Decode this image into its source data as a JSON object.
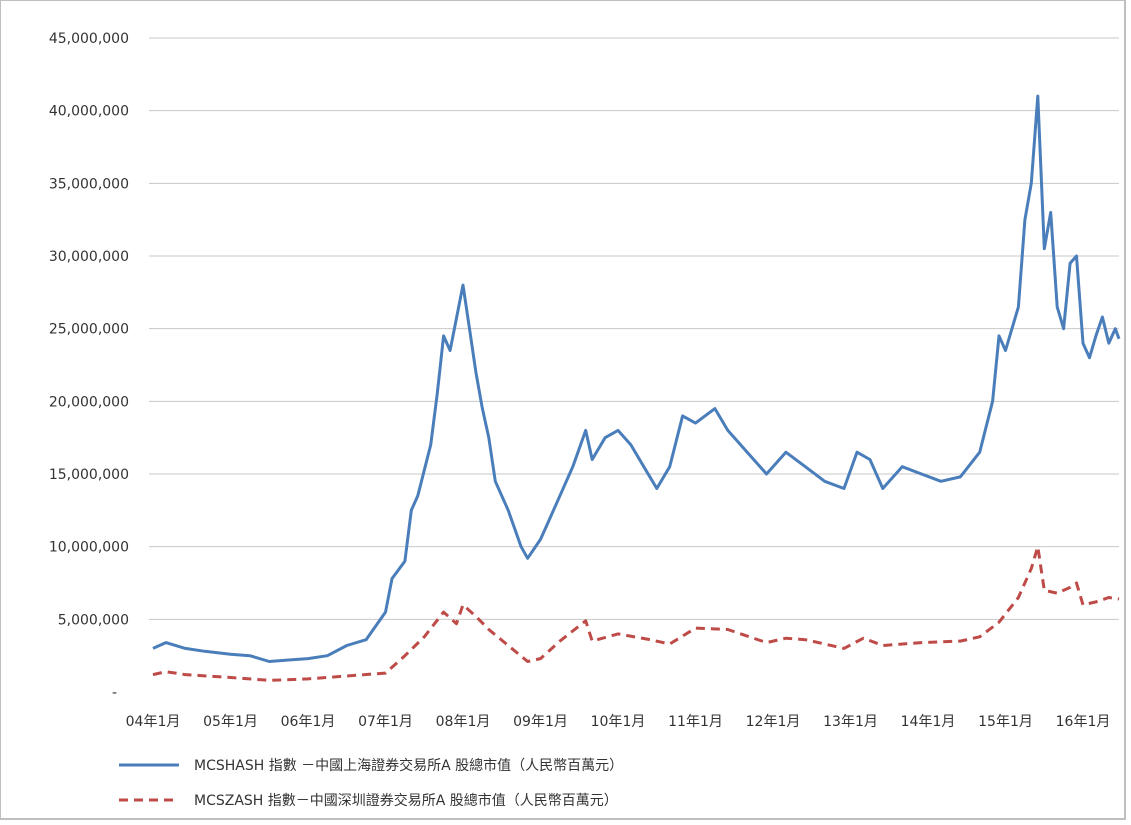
{
  "chart_data": {
    "type": "line",
    "ylim": [
      0,
      45000000
    ],
    "y_ticks": [
      "-",
      "5,000,000",
      "10,000,000",
      "15,000,000",
      "20,000,000",
      "25,000,000",
      "30,000,000",
      "35,000,000",
      "40,000,000",
      "45,000,000"
    ],
    "y_tick_values": [
      0,
      5000000,
      10000000,
      15000000,
      20000000,
      25000000,
      30000000,
      35000000,
      40000000,
      45000000
    ],
    "x_ticks": [
      "04年1月",
      "05年1月",
      "06年1月",
      "07年1月",
      "08年1月",
      "09年1月",
      "10年1月",
      "11年1月",
      "12年1月",
      "13年1月",
      "14年1月",
      "15年1月",
      "16年1月"
    ],
    "x_range": [
      "2004-01",
      "2016-07"
    ],
    "grid": "horizontal",
    "legend_position": "bottom",
    "series": [
      {
        "name": "MCSHASH 指數 －中國上海證券交易所A 股總市值（人民幣百萬元）",
        "style": "solid",
        "color": "#4a7ebb",
        "points": [
          [
            "2004-01",
            3000000
          ],
          [
            "2004-03",
            3400000
          ],
          [
            "2004-06",
            3000000
          ],
          [
            "2004-09",
            2800000
          ],
          [
            "2005-01",
            2600000
          ],
          [
            "2005-04",
            2500000
          ],
          [
            "2005-07",
            2100000
          ],
          [
            "2005-10",
            2200000
          ],
          [
            "2006-01",
            2300000
          ],
          [
            "2006-04",
            2500000
          ],
          [
            "2006-07",
            3200000
          ],
          [
            "2006-10",
            3600000
          ],
          [
            "2007-01",
            5500000
          ],
          [
            "2007-02",
            7800000
          ],
          [
            "2007-04",
            9000000
          ],
          [
            "2007-05",
            12500000
          ],
          [
            "2007-06",
            13500000
          ],
          [
            "2007-08",
            17000000
          ],
          [
            "2007-09",
            20500000
          ],
          [
            "2007-10",
            24500000
          ],
          [
            "2007-11",
            23500000
          ],
          [
            "2008-01",
            28000000
          ],
          [
            "2008-02",
            25000000
          ],
          [
            "2008-03",
            22000000
          ],
          [
            "2008-04",
            19500000
          ],
          [
            "2008-05",
            17500000
          ],
          [
            "2008-06",
            14500000
          ],
          [
            "2008-08",
            12500000
          ],
          [
            "2008-10",
            10000000
          ],
          [
            "2008-11",
            9200000
          ],
          [
            "2009-01",
            10500000
          ],
          [
            "2009-02",
            11500000
          ],
          [
            "2009-04",
            13500000
          ],
          [
            "2009-06",
            15500000
          ],
          [
            "2009-08",
            18000000
          ],
          [
            "2009-09",
            16000000
          ],
          [
            "2009-11",
            17500000
          ],
          [
            "2010-01",
            18000000
          ],
          [
            "2010-03",
            17000000
          ],
          [
            "2010-05",
            15500000
          ],
          [
            "2010-07",
            14000000
          ],
          [
            "2010-09",
            15500000
          ],
          [
            "2010-11",
            19000000
          ],
          [
            "2011-01",
            18500000
          ],
          [
            "2011-04",
            19500000
          ],
          [
            "2011-06",
            18000000
          ],
          [
            "2011-09",
            16500000
          ],
          [
            "2011-12",
            15000000
          ],
          [
            "2012-03",
            16500000
          ],
          [
            "2012-06",
            15500000
          ],
          [
            "2012-09",
            14500000
          ],
          [
            "2012-12",
            14000000
          ],
          [
            "2013-02",
            16500000
          ],
          [
            "2013-04",
            16000000
          ],
          [
            "2013-06",
            14000000
          ],
          [
            "2013-09",
            15500000
          ],
          [
            "2013-12",
            15000000
          ],
          [
            "2014-03",
            14500000
          ],
          [
            "2014-06",
            14800000
          ],
          [
            "2014-09",
            16500000
          ],
          [
            "2014-11",
            20000000
          ],
          [
            "2014-12",
            24500000
          ],
          [
            "2015-01",
            23500000
          ],
          [
            "2015-03",
            26500000
          ],
          [
            "2015-04",
            32500000
          ],
          [
            "2015-05",
            35000000
          ],
          [
            "2015-06",
            41000000
          ],
          [
            "2015-07",
            30500000
          ],
          [
            "2015-08",
            33000000
          ],
          [
            "2015-09",
            26500000
          ],
          [
            "2015-10",
            25000000
          ],
          [
            "2015-11",
            29500000
          ],
          [
            "2015-12",
            30000000
          ],
          [
            "2016-01",
            24000000
          ],
          [
            "2016-02",
            23000000
          ],
          [
            "2016-03",
            24500000
          ],
          [
            "2016-04",
            25800000
          ],
          [
            "2016-05",
            24000000
          ],
          [
            "2016-06",
            25000000
          ],
          [
            "2016-07",
            24300000
          ]
        ]
      },
      {
        "name": "MCSZASH 指數－中國深圳證券交易所A 股總市值（人民幣百萬元）",
        "style": "dashed",
        "color": "#be4b48",
        "points": [
          [
            "2004-01",
            1200000
          ],
          [
            "2004-03",
            1400000
          ],
          [
            "2004-06",
            1200000
          ],
          [
            "2005-01",
            1000000
          ],
          [
            "2005-07",
            800000
          ],
          [
            "2006-01",
            900000
          ],
          [
            "2006-07",
            1100000
          ],
          [
            "2007-01",
            1300000
          ],
          [
            "2007-04",
            2500000
          ],
          [
            "2007-07",
            3800000
          ],
          [
            "2007-10",
            5500000
          ],
          [
            "2007-12",
            4700000
          ],
          [
            "2008-01",
            6000000
          ],
          [
            "2008-03",
            5200000
          ],
          [
            "2008-05",
            4300000
          ],
          [
            "2008-08",
            3200000
          ],
          [
            "2008-11",
            2100000
          ],
          [
            "2009-01",
            2300000
          ],
          [
            "2009-04",
            3500000
          ],
          [
            "2009-08",
            4900000
          ],
          [
            "2009-09",
            3500000
          ],
          [
            "2010-01",
            4000000
          ],
          [
            "2010-06",
            3600000
          ],
          [
            "2010-09",
            3300000
          ],
          [
            "2011-01",
            4400000
          ],
          [
            "2011-06",
            4300000
          ],
          [
            "2011-12",
            3400000
          ],
          [
            "2012-03",
            3700000
          ],
          [
            "2012-06",
            3600000
          ],
          [
            "2012-09",
            3300000
          ],
          [
            "2012-12",
            3000000
          ],
          [
            "2013-03",
            3700000
          ],
          [
            "2013-06",
            3200000
          ],
          [
            "2013-12",
            3400000
          ],
          [
            "2014-06",
            3500000
          ],
          [
            "2014-09",
            3800000
          ],
          [
            "2014-12",
            4800000
          ],
          [
            "2015-03",
            6500000
          ],
          [
            "2015-05",
            8500000
          ],
          [
            "2015-06",
            10000000
          ],
          [
            "2015-07",
            7000000
          ],
          [
            "2015-09",
            6800000
          ],
          [
            "2015-11",
            7200000
          ],
          [
            "2015-12",
            7500000
          ],
          [
            "2016-01",
            6000000
          ],
          [
            "2016-03",
            6200000
          ],
          [
            "2016-05",
            6500000
          ],
          [
            "2016-07",
            6400000
          ]
        ]
      }
    ]
  }
}
